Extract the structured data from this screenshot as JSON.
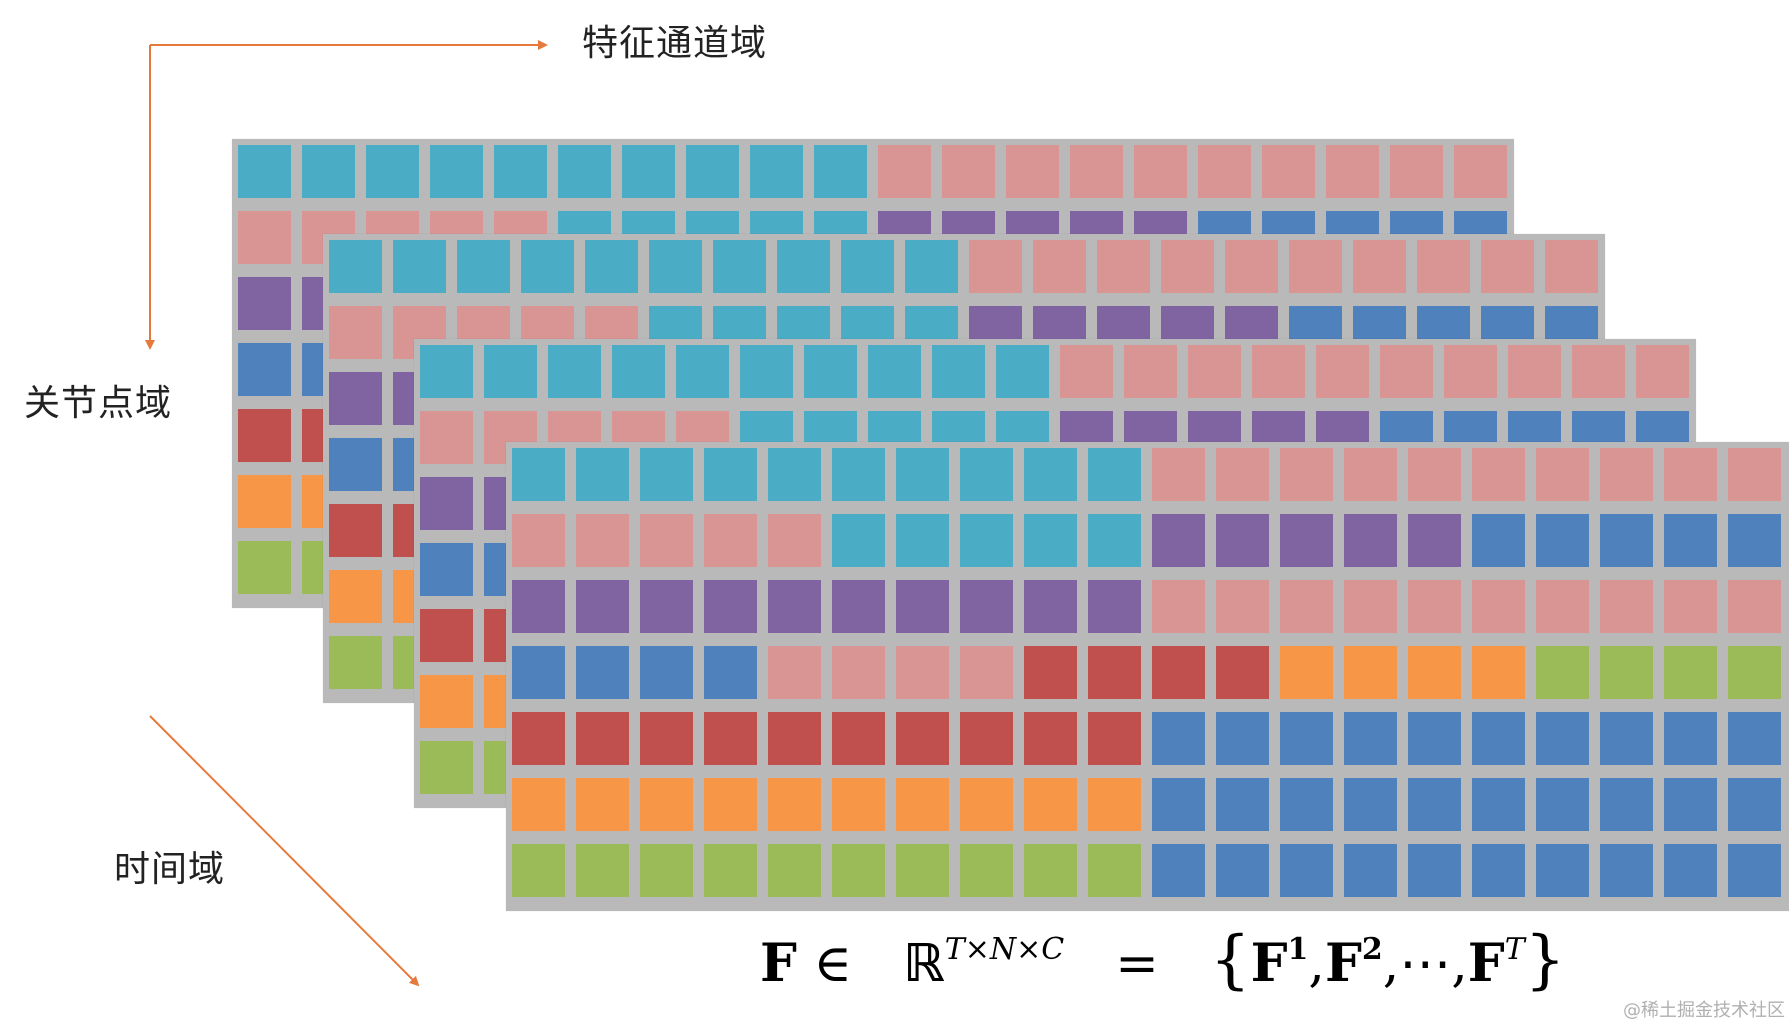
{
  "labels": {
    "channel_domain": "特征通道域",
    "joint_domain": "关节点域",
    "time_domain": "时间域"
  },
  "colors": {
    "arrow": "#e67a3c",
    "grid_bg": "#b9b9b9",
    "cyan": "#4bacc6",
    "pink": "#d99594",
    "purple": "#8064a2",
    "blue": "#4f81bd",
    "red": "#c0504d",
    "orange": "#f79646",
    "green": "#9bbb59"
  },
  "front_grid": [
    [
      "cyan",
      "cyan",
      "cyan",
      "cyan",
      "cyan",
      "cyan",
      "cyan",
      "cyan",
      "cyan",
      "cyan",
      "pink",
      "pink",
      "pink",
      "pink",
      "pink",
      "pink",
      "pink",
      "pink",
      "pink",
      "pink"
    ],
    [
      "pink",
      "pink",
      "pink",
      "pink",
      "pink",
      "cyan",
      "cyan",
      "cyan",
      "cyan",
      "cyan",
      "purple",
      "purple",
      "purple",
      "purple",
      "purple",
      "blue",
      "blue",
      "blue",
      "blue",
      "blue"
    ],
    [
      "purple",
      "purple",
      "purple",
      "purple",
      "purple",
      "purple",
      "purple",
      "purple",
      "purple",
      "purple",
      "pink",
      "pink",
      "pink",
      "pink",
      "pink",
      "pink",
      "pink",
      "pink",
      "pink",
      "pink"
    ],
    [
      "blue",
      "blue",
      "blue",
      "blue",
      "pink",
      "pink",
      "pink",
      "pink",
      "red",
      "red",
      "red",
      "red",
      "orange",
      "orange",
      "orange",
      "orange",
      "green",
      "green",
      "green",
      "green"
    ],
    [
      "red",
      "red",
      "red",
      "red",
      "red",
      "red",
      "red",
      "red",
      "red",
      "red",
      "blue",
      "blue",
      "blue",
      "blue",
      "blue",
      "blue",
      "blue",
      "blue",
      "blue",
      "blue"
    ],
    [
      "orange",
      "orange",
      "orange",
      "orange",
      "orange",
      "orange",
      "orange",
      "orange",
      "orange",
      "orange",
      "blue",
      "blue",
      "blue",
      "blue",
      "blue",
      "blue",
      "blue",
      "blue",
      "blue",
      "blue"
    ],
    [
      "green",
      "green",
      "green",
      "green",
      "green",
      "green",
      "green",
      "green",
      "green",
      "green",
      "blue",
      "blue",
      "blue",
      "blue",
      "blue",
      "blue",
      "blue",
      "blue",
      "blue",
      "blue"
    ]
  ],
  "formula": {
    "F": "F",
    "in": "∈",
    "R": "ℝ",
    "dims": "T×N×C",
    "eq": "=",
    "open": "{",
    "close": "}",
    "F1_sup": "1",
    "F2_sup": "2",
    "FT_sup": "T",
    "comma": ",",
    "cdots": "⋯"
  },
  "watermark": "@稀土掘金技术社区"
}
